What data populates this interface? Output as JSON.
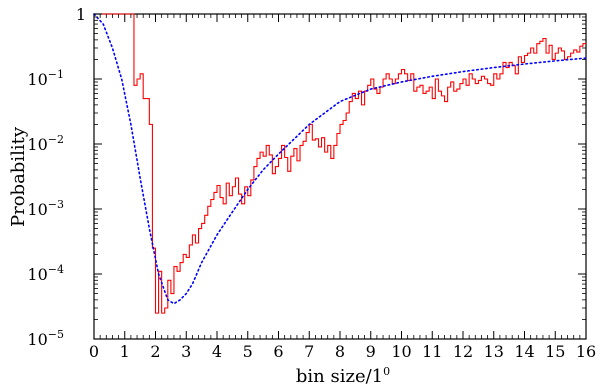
{
  "chart_data": {
    "type": "line",
    "xlabel": "bin size/1",
    "xlabel_superscript": "0",
    "ylabel": "Probability",
    "xlim": [
      0,
      16
    ],
    "ylim": [
      1e-05,
      1
    ],
    "yscale": "log",
    "grid": false,
    "legend": "none",
    "x_ticks": [
      "0",
      "1",
      "2",
      "3",
      "4",
      "5",
      "6",
      "7",
      "8",
      "9",
      "10",
      "11",
      "12",
      "13",
      "14",
      "15",
      "16"
    ],
    "y_ticks": [
      {
        "value": 1,
        "label": "1"
      },
      {
        "value": 0.1,
        "label": "10",
        "exponent": "−1"
      },
      {
        "value": 0.01,
        "label": "10",
        "exponent": "−2"
      },
      {
        "value": 0.001,
        "label": "10",
        "exponent": "−3"
      },
      {
        "value": 0.0001,
        "label": "10",
        "exponent": "−4"
      },
      {
        "value": 1e-05,
        "label": "10",
        "exponent": "−5"
      }
    ],
    "series": [
      {
        "style": "histogram",
        "color": "#ff0000",
        "x": [
          0.0,
          1.3,
          1.4,
          1.5,
          1.6,
          1.7,
          1.8,
          1.9,
          2.0,
          2.1,
          2.2,
          2.3,
          2.4,
          2.5,
          2.6,
          2.7,
          2.8,
          2.9,
          3.0,
          3.1,
          3.2,
          3.3,
          3.4,
          3.5,
          3.6,
          3.7,
          3.8,
          3.9,
          4.0,
          4.1,
          4.2,
          4.3,
          4.4,
          4.5,
          4.6,
          4.7,
          4.8,
          4.9,
          5.0,
          5.1,
          5.2,
          5.3,
          5.4,
          5.5,
          5.6,
          5.7,
          5.8,
          5.9,
          6.0,
          6.1,
          6.2,
          6.3,
          6.4,
          6.5,
          6.6,
          6.7,
          6.8,
          6.9,
          7.0,
          7.1,
          7.2,
          7.3,
          7.4,
          7.5,
          7.6,
          7.7,
          7.8,
          7.9,
          8.0,
          8.1,
          8.2,
          8.3,
          8.4,
          8.5,
          8.6,
          8.7,
          8.8,
          8.9,
          9.0,
          9.1,
          9.2,
          9.3,
          9.4,
          9.5,
          9.6,
          9.7,
          9.8,
          9.9,
          10.0,
          10.1,
          10.2,
          10.3,
          10.4,
          10.5,
          10.6,
          10.7,
          10.8,
          10.9,
          11.0,
          11.1,
          11.2,
          11.3,
          11.4,
          11.5,
          11.6,
          11.7,
          11.8,
          11.9,
          12.0,
          12.1,
          12.2,
          12.3,
          12.4,
          12.5,
          12.6,
          12.7,
          12.8,
          12.9,
          13.0,
          13.1,
          13.2,
          13.3,
          13.4,
          13.5,
          13.6,
          13.7,
          13.8,
          13.9,
          14.0,
          14.1,
          14.2,
          14.3,
          14.4,
          14.5,
          14.6,
          14.7,
          14.8,
          14.9,
          15.0,
          15.1,
          15.2,
          15.3,
          15.4,
          15.5,
          15.6,
          15.7,
          15.8,
          15.9,
          16.0
        ],
        "y": [
          1,
          0.08,
          0.1,
          0.12,
          0.05,
          0.05,
          0.02,
          0.00025,
          2.5e-05,
          0.00011,
          2.5e-05,
          3e-05,
          8e-05,
          5e-05,
          0.00013,
          0.00011,
          0.00015,
          0.0002,
          0.00018,
          0.00028,
          0.0004,
          0.0003,
          0.0005,
          0.0006,
          0.0008,
          0.0011,
          0.0014,
          0.0018,
          0.0023,
          0.0015,
          0.0012,
          0.0025,
          0.0016,
          0.0022,
          0.003,
          0.0017,
          0.0012,
          0.0022,
          0.0016,
          0.0028,
          0.0045,
          0.006,
          0.0075,
          0.0065,
          0.0095,
          0.0068,
          0.0035,
          0.0045,
          0.006,
          0.0095,
          0.0062,
          0.0038,
          0.0065,
          0.0085,
          0.0055,
          0.0095,
          0.011,
          0.015,
          0.02,
          0.0115,
          0.012,
          0.009,
          0.0125,
          0.0075,
          0.0095,
          0.006,
          0.0095,
          0.0145,
          0.02,
          0.023,
          0.03,
          0.045,
          0.06,
          0.05,
          0.065,
          0.04,
          0.065,
          0.08,
          0.1,
          0.07,
          0.06,
          0.075,
          0.1,
          0.12,
          0.1,
          0.085,
          0.1,
          0.12,
          0.14,
          0.12,
          0.095,
          0.12,
          0.065,
          0.075,
          0.08,
          0.06,
          0.065,
          0.075,
          0.05,
          0.1,
          0.065,
          0.055,
          0.045,
          0.075,
          0.09,
          0.065,
          0.07,
          0.085,
          0.1,
          0.08,
          0.12,
          0.1,
          0.085,
          0.095,
          0.11,
          0.1,
          0.085,
          0.08,
          0.12,
          0.1,
          0.12,
          0.18,
          0.15,
          0.18,
          0.16,
          0.12,
          0.22,
          0.18,
          0.23,
          0.25,
          0.3,
          0.25,
          0.35,
          0.38,
          0.42,
          0.25,
          0.33,
          0.2,
          0.25,
          0.3,
          0.27,
          0.2,
          0.22,
          0.25,
          0.28,
          0.26,
          0.32,
          0.35,
          0.35
        ]
      },
      {
        "style": "dotted",
        "color": "#0000ff",
        "x": [
          0.0,
          0.3,
          0.6,
          0.9,
          1.2,
          1.5,
          1.8,
          2.1,
          2.4,
          2.6,
          2.8,
          3.0,
          3.2,
          3.5,
          4.0,
          4.5,
          5.0,
          5.5,
          6.0,
          7.0,
          8.0,
          9.0,
          10.0,
          11.0,
          12.0,
          13.0,
          14.0,
          15.0,
          16.0
        ],
        "y": [
          1,
          0.7,
          0.3,
          0.1,
          0.02,
          0.003,
          0.0005,
          0.0001,
          4e-05,
          3.5e-05,
          4e-05,
          5e-05,
          7e-05,
          0.00015,
          0.0004,
          0.0009,
          0.002,
          0.004,
          0.007,
          0.02,
          0.045,
          0.07,
          0.09,
          0.11,
          0.13,
          0.15,
          0.17,
          0.19,
          0.21
        ]
      }
    ]
  }
}
